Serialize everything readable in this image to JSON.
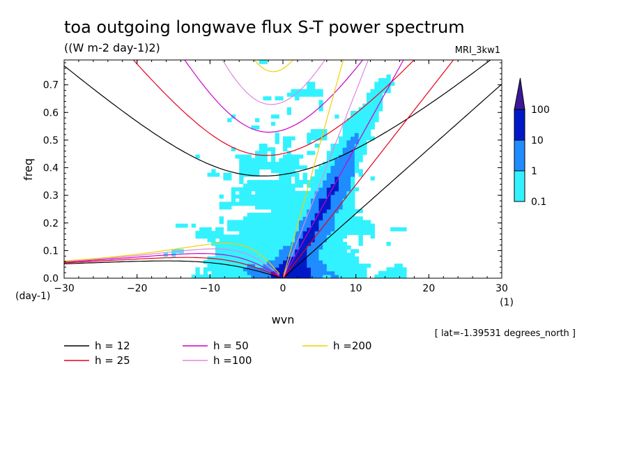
{
  "chart_data": {
    "type": "heatmap",
    "title": "toa outgoing longwave flux S-T power spectrum",
    "subtitle": "((W m-2 day-1)2)",
    "model_label": "MRI_3kw1",
    "xlabel": "wvn",
    "ylabel": "freq",
    "x_unit": "(1)",
    "y_unit": "(day-1)",
    "xlim": [
      -30,
      30
    ],
    "ylim": [
      0,
      0.79
    ],
    "x_ticks": [
      -30,
      -20,
      -10,
      0,
      10,
      20,
      30
    ],
    "y_ticks": [
      0.0,
      0.1,
      0.2,
      0.3,
      0.4,
      0.5,
      0.6,
      0.7
    ],
    "info": "[ lat=-1.39531 degrees_north ]",
    "colorbar": {
      "levels": [
        0.1,
        1,
        10,
        100
      ],
      "labels": [
        "0.1",
        "1",
        "10",
        "100"
      ],
      "colors": [
        "#33f2ff",
        "#1f8cff",
        "#0019c8",
        "#3c1896"
      ]
    },
    "dispersion_curves": [
      {
        "h": 12,
        "label": "h = 12",
        "color": "#000000"
      },
      {
        "h": 25,
        "label": "h = 25",
        "color": "#e6001a"
      },
      {
        "h": 50,
        "label": "h = 50",
        "color": "#cc00cc"
      },
      {
        "h": 100,
        "label": "h =100",
        "color": "#dd88dd"
      },
      {
        "h": 200,
        "label": "h =200",
        "color": "#f0d000"
      }
    ]
  }
}
